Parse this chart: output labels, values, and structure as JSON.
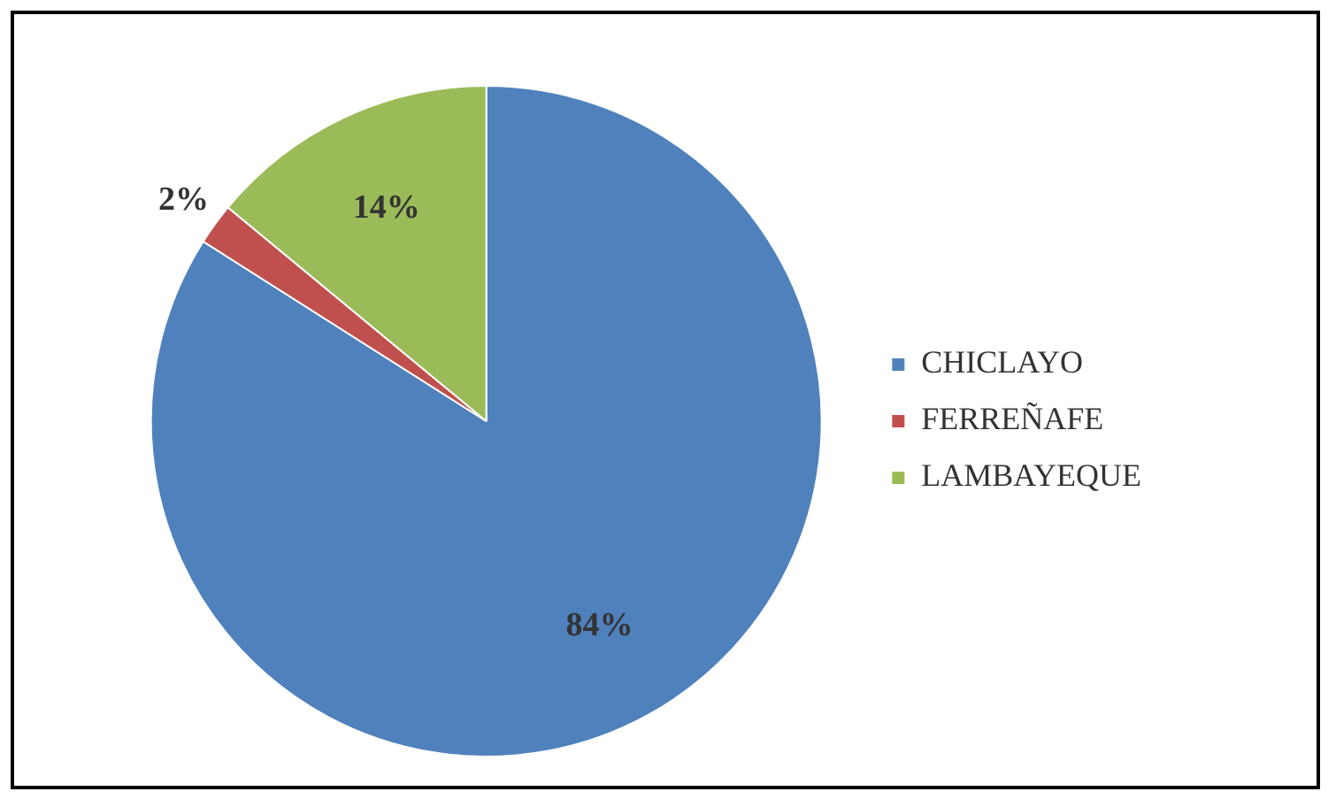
{
  "chart_data": {
    "type": "pie",
    "categories": [
      "CHICLAYO",
      "FERREÑAFE",
      "LAMBAYEQUE"
    ],
    "values": [
      84,
      2,
      14
    ],
    "colors": [
      "#4f81bd",
      "#c0504d",
      "#9bbb59"
    ],
    "value_labels": [
      "84%",
      "2%",
      "14%"
    ],
    "legend": "right"
  }
}
